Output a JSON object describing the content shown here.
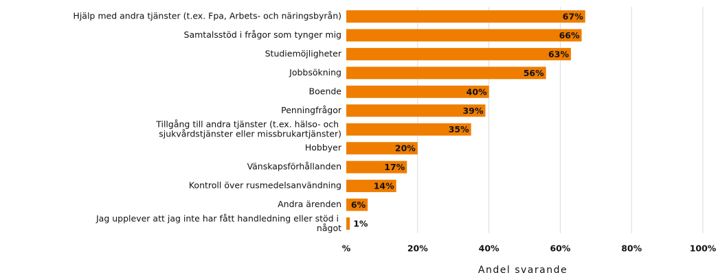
{
  "chart_data": {
    "type": "bar",
    "orientation": "horizontal",
    "categories": [
      "Hjälp med andra tjänster (t.ex. Fpa, Arbets- och näringsbyrån)",
      "Samtalsstöd i frågor som tynger mig",
      "Studiemöjligheter",
      "Jobbsökning",
      "Boende",
      "Penningfrågor",
      "Tillgång till andra tjänster (t.ex. hälso- och sjukvårdstjänster eller missbrukartjänster)",
      "Hobbyer",
      "Vänskapsförhållanden",
      "Kontroll över rusmedelsanvändning",
      "Andra ärenden",
      "Jag upplever att jag inte har fått handledning eller stöd i något"
    ],
    "values": [
      67,
      66,
      63,
      56,
      40,
      39,
      35,
      20,
      17,
      14,
      6,
      1
    ],
    "value_labels": [
      "67%",
      "66%",
      "63%",
      "56%",
      "40%",
      "39%",
      "35%",
      "20%",
      "17%",
      "14%",
      "6%",
      "1%"
    ],
    "color": "#ef7d00",
    "xlim": [
      0,
      100
    ],
    "xticks": [
      {
        "value": 0,
        "label": "%"
      },
      {
        "value": 20,
        "label": "20%"
      },
      {
        "value": 40,
        "label": "40%"
      },
      {
        "value": 60,
        "label": "60%"
      },
      {
        "value": 80,
        "label": "80%"
      },
      {
        "value": 100,
        "label": "100%"
      }
    ],
    "xlabel": "Andel svarande",
    "grid": true
  }
}
